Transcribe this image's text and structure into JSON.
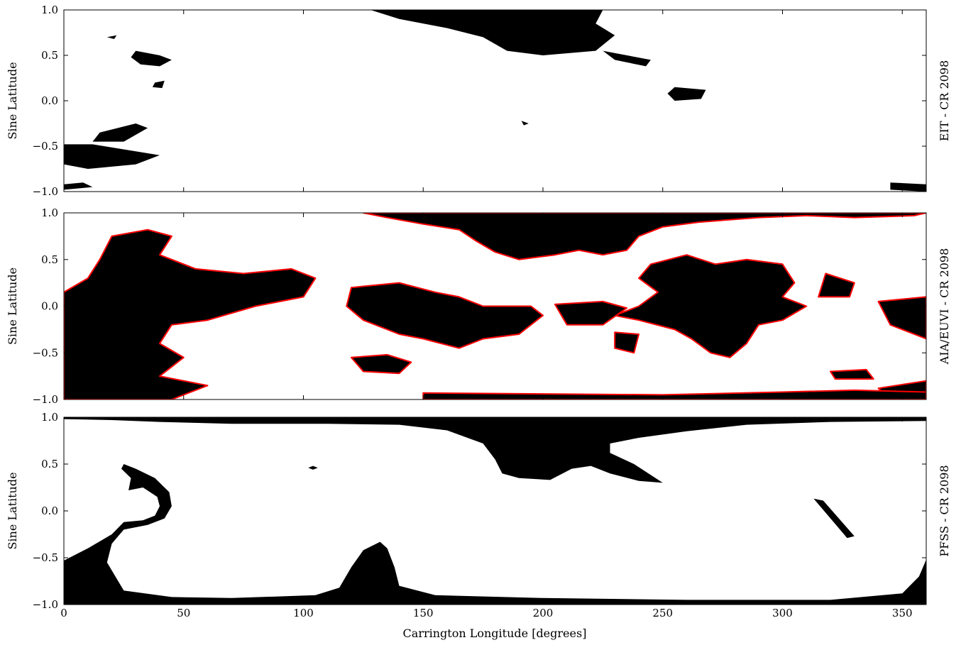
{
  "chart_data": {
    "type": "map",
    "xlabel": "Carrington Longitude [degrees]",
    "x_ticks": [
      "0",
      "50",
      "100",
      "150",
      "200",
      "250",
      "300",
      "350"
    ],
    "x_tick_values": [
      0,
      50,
      100,
      150,
      200,
      250,
      300,
      350
    ],
    "xlim": [
      0,
      360
    ],
    "colors": {
      "region": "#000000",
      "background": "#ffffff",
      "contour": "#ff0000"
    },
    "panels": [
      {
        "id": "eit",
        "side_label": "EIT - CR 2098",
        "ylabel": "Sine Latitude",
        "ylim": [
          -1,
          1
        ],
        "y_ticks": [
          "1.0",
          "0.5",
          "0.0",
          "−0.5",
          "−1.0"
        ],
        "y_tick_values": [
          1.0,
          0.5,
          0.0,
          -0.5,
          -1.0
        ],
        "contour": false,
        "regions": [
          [
            [
              128,
              1.0
            ],
            [
              225,
              1.0
            ],
            [
              222,
              0.85
            ],
            [
              230,
              0.72
            ],
            [
              222,
              0.55
            ],
            [
              200,
              0.5
            ],
            [
              185,
              0.55
            ],
            [
              175,
              0.7
            ],
            [
              160,
              0.8
            ],
            [
              140,
              0.9
            ]
          ],
          [
            [
              30,
              0.55
            ],
            [
              40,
              0.5
            ],
            [
              45,
              0.45
            ],
            [
              40,
              0.38
            ],
            [
              32,
              0.4
            ],
            [
              28,
              0.48
            ]
          ],
          [
            [
              38,
              0.2
            ],
            [
              42,
              0.22
            ],
            [
              41,
              0.14
            ],
            [
              37,
              0.15
            ]
          ],
          [
            [
              255,
              0.15
            ],
            [
              268,
              0.12
            ],
            [
              266,
              0.02
            ],
            [
              255,
              0.0
            ],
            [
              252,
              0.08
            ]
          ],
          [
            [
              225,
              0.55
            ],
            [
              245,
              0.45
            ],
            [
              243,
              0.38
            ],
            [
              230,
              0.45
            ]
          ],
          [
            [
              15,
              -0.35
            ],
            [
              30,
              -0.25
            ],
            [
              35,
              -0.3
            ],
            [
              25,
              -0.45
            ],
            [
              12,
              -0.45
            ]
          ],
          [
            [
              0,
              -0.48
            ],
            [
              12,
              -0.48
            ],
            [
              40,
              -0.6
            ],
            [
              30,
              -0.7
            ],
            [
              10,
              -0.75
            ],
            [
              0,
              -0.7
            ]
          ],
          [
            [
              0,
              -0.92
            ],
            [
              8,
              -0.9
            ],
            [
              12,
              -0.95
            ],
            [
              0,
              -0.98
            ]
          ],
          [
            [
              345,
              -0.9
            ],
            [
              360,
              -0.92
            ],
            [
              360,
              -1.0
            ],
            [
              345,
              -0.98
            ]
          ],
          [
            [
              18,
              0.7
            ],
            [
              22,
              0.72
            ],
            [
              21,
              0.68
            ]
          ],
          [
            [
              191,
              -0.22
            ],
            [
              194,
              -0.25
            ],
            [
              192,
              -0.27
            ]
          ]
        ]
      },
      {
        "id": "aia",
        "side_label": "AIA/EUVI - CR 2098",
        "ylabel": "Sine Latitude",
        "ylim": [
          -1,
          1
        ],
        "y_ticks": [
          "1.0",
          "0.5",
          "0.0",
          "−0.5",
          "−1.0"
        ],
        "y_tick_values": [
          1.0,
          0.5,
          0.0,
          -0.5,
          -1.0
        ],
        "contour": true,
        "regions": [
          [
            [
              0,
              0.15
            ],
            [
              10,
              0.3
            ],
            [
              15,
              0.5
            ],
            [
              20,
              0.75
            ],
            [
              35,
              0.82
            ],
            [
              45,
              0.75
            ],
            [
              40,
              0.55
            ],
            [
              55,
              0.4
            ],
            [
              75,
              0.35
            ],
            [
              95,
              0.4
            ],
            [
              105,
              0.3
            ],
            [
              100,
              0.1
            ],
            [
              80,
              0.0
            ],
            [
              60,
              -0.15
            ],
            [
              45,
              -0.2
            ],
            [
              40,
              -0.4
            ],
            [
              50,
              -0.55
            ],
            [
              40,
              -0.75
            ],
            [
              60,
              -0.85
            ],
            [
              45,
              -1.0
            ],
            [
              0,
              -1.0
            ]
          ],
          [
            [
              125,
              1.0
            ],
            [
              360,
              1.0
            ],
            [
              355,
              0.97
            ],
            [
              330,
              0.95
            ],
            [
              310,
              0.97
            ],
            [
              290,
              0.95
            ],
            [
              265,
              0.9
            ],
            [
              250,
              0.85
            ],
            [
              240,
              0.75
            ],
            [
              235,
              0.6
            ],
            [
              225,
              0.55
            ],
            [
              215,
              0.6
            ],
            [
              205,
              0.55
            ],
            [
              190,
              0.5
            ],
            [
              180,
              0.58
            ],
            [
              172,
              0.7
            ],
            [
              165,
              0.82
            ],
            [
              150,
              0.88
            ],
            [
              135,
              0.95
            ]
          ],
          [
            [
              245,
              0.45
            ],
            [
              260,
              0.55
            ],
            [
              272,
              0.45
            ],
            [
              285,
              0.5
            ],
            [
              300,
              0.45
            ],
            [
              305,
              0.25
            ],
            [
              300,
              0.1
            ],
            [
              310,
              0.0
            ],
            [
              300,
              -0.15
            ],
            [
              290,
              -0.2
            ],
            [
              285,
              -0.4
            ],
            [
              278,
              -0.55
            ],
            [
              270,
              -0.5
            ],
            [
              262,
              -0.35
            ],
            [
              255,
              -0.25
            ],
            [
              240,
              -0.15
            ],
            [
              230,
              -0.1
            ],
            [
              240,
              0.0
            ],
            [
              248,
              0.15
            ],
            [
              240,
              0.3
            ]
          ],
          [
            [
              120,
              0.2
            ],
            [
              140,
              0.25
            ],
            [
              155,
              0.15
            ],
            [
              165,
              0.1
            ],
            [
              175,
              0.0
            ],
            [
              195,
              0.0
            ],
            [
              200,
              -0.1
            ],
            [
              190,
              -0.3
            ],
            [
              175,
              -0.35
            ],
            [
              165,
              -0.45
            ],
            [
              150,
              -0.35
            ],
            [
              140,
              -0.3
            ],
            [
              125,
              -0.15
            ],
            [
              118,
              0.0
            ]
          ],
          [
            [
              120,
              -0.55
            ],
            [
              135,
              -0.52
            ],
            [
              145,
              -0.6
            ],
            [
              140,
              -0.72
            ],
            [
              125,
              -0.7
            ]
          ],
          [
            [
              205,
              0.02
            ],
            [
              225,
              0.05
            ],
            [
              235,
              -0.02
            ],
            [
              225,
              -0.2
            ],
            [
              210,
              -0.2
            ]
          ],
          [
            [
              230,
              -0.28
            ],
            [
              240,
              -0.3
            ],
            [
              238,
              -0.5
            ],
            [
              230,
              -0.45
            ]
          ],
          [
            [
              318,
              0.35
            ],
            [
              330,
              0.25
            ],
            [
              328,
              0.1
            ],
            [
              315,
              0.1
            ]
          ],
          [
            [
              340,
              0.05
            ],
            [
              360,
              0.1
            ],
            [
              360,
              -0.35
            ],
            [
              345,
              -0.2
            ]
          ],
          [
            [
              320,
              -0.7
            ],
            [
              335,
              -0.68
            ],
            [
              338,
              -0.78
            ],
            [
              322,
              -0.78
            ]
          ],
          [
            [
              340,
              -0.88
            ],
            [
              360,
              -0.8
            ],
            [
              360,
              -1.0
            ],
            [
              345,
              -1.0
            ]
          ],
          [
            [
              150,
              -0.93
            ],
            [
              250,
              -0.95
            ],
            [
              300,
              -0.92
            ],
            [
              330,
              -0.9
            ],
            [
              360,
              -0.92
            ],
            [
              360,
              -1.0
            ],
            [
              150,
              -1.0
            ]
          ]
        ]
      },
      {
        "id": "pfss",
        "side_label": "PFSS - CR 2098",
        "ylabel": "Sine Latitude",
        "ylim": [
          -1,
          1
        ],
        "y_ticks": [
          "1.0",
          "0.5",
          "0.0",
          "−0.5",
          "−1.0"
        ],
        "y_tick_values": [
          1.0,
          0.5,
          0.0,
          -0.5,
          -1.0
        ],
        "contour": false,
        "regions": [
          [
            [
              0,
              -0.53
            ],
            [
              10,
              -0.4
            ],
            [
              20,
              -0.25
            ],
            [
              25,
              -0.12
            ],
            [
              33,
              -0.1
            ],
            [
              38,
              -0.05
            ],
            [
              40,
              0.05
            ],
            [
              39,
              0.15
            ],
            [
              33,
              0.25
            ],
            [
              27,
              0.22
            ],
            [
              28,
              0.35
            ],
            [
              24,
              0.45
            ],
            [
              25,
              0.5
            ],
            [
              30,
              0.45
            ],
            [
              38,
              0.35
            ],
            [
              44,
              0.2
            ],
            [
              45,
              0.05
            ],
            [
              42,
              -0.08
            ],
            [
              35,
              -0.15
            ],
            [
              25,
              -0.2
            ],
            [
              20,
              -0.35
            ],
            [
              18,
              -0.55
            ],
            [
              25,
              -0.85
            ],
            [
              45,
              -0.92
            ],
            [
              70,
              -0.93
            ],
            [
              105,
              -0.9
            ],
            [
              115,
              -0.82
            ],
            [
              120,
              -0.6
            ],
            [
              125,
              -0.42
            ],
            [
              132,
              -0.33
            ],
            [
              135,
              -0.4
            ],
            [
              138,
              -0.6
            ],
            [
              140,
              -0.8
            ],
            [
              155,
              -0.9
            ],
            [
              200,
              -0.93
            ],
            [
              260,
              -0.95
            ],
            [
              320,
              -0.95
            ],
            [
              350,
              -0.88
            ],
            [
              357,
              -0.7
            ],
            [
              360,
              -0.52
            ],
            [
              360,
              -1.0
            ],
            [
              0,
              -1.0
            ]
          ],
          [
            [
              0,
              1.0
            ],
            [
              360,
              1.0
            ],
            [
              360,
              0.96
            ],
            [
              320,
              0.95
            ],
            [
              285,
              0.92
            ],
            [
              260,
              0.85
            ],
            [
              240,
              0.78
            ],
            [
              228,
              0.72
            ],
            [
              228,
              0.62
            ],
            [
              238,
              0.5
            ],
            [
              250,
              0.3
            ],
            [
              240,
              0.32
            ],
            [
              228,
              0.4
            ],
            [
              220,
              0.48
            ],
            [
              212,
              0.45
            ],
            [
              203,
              0.33
            ],
            [
              190,
              0.35
            ],
            [
              183,
              0.4
            ],
            [
              180,
              0.55
            ],
            [
              175,
              0.72
            ],
            [
              160,
              0.86
            ],
            [
              140,
              0.92
            ],
            [
              110,
              0.93
            ],
            [
              70,
              0.93
            ],
            [
              40,
              0.95
            ],
            [
              20,
              0.97
            ],
            [
              0,
              0.98
            ]
          ],
          [
            [
              313,
              0.13
            ],
            [
              317,
              0.11
            ],
            [
              330,
              -0.27
            ],
            [
              327,
              -0.29
            ]
          ],
          [
            [
              104,
              0.48
            ],
            [
              106,
              0.46
            ],
            [
              104,
              0.44
            ],
            [
              102,
              0.46
            ]
          ]
        ]
      }
    ]
  }
}
